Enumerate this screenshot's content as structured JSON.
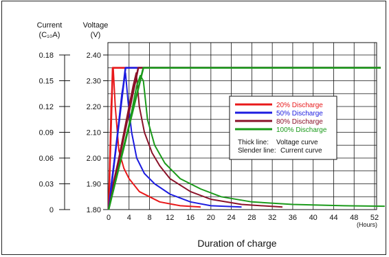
{
  "chart_data": {
    "type": "line",
    "xlabel": "Duration of charge",
    "x_unit": "(Hours)",
    "x_ticks": [
      0,
      4,
      8,
      12,
      16,
      20,
      24,
      28,
      32,
      36,
      40,
      44,
      48,
      52
    ],
    "xlim": [
      0,
      54
    ],
    "left_axis": {
      "title_line1": "Current",
      "title_line2": "(C₁₀A)",
      "ticks": [
        "0",
        "0.03",
        "0.06",
        "0.09",
        "0.12",
        "0.15",
        "0.18"
      ],
      "ylim": [
        0,
        0.18
      ]
    },
    "right_axis": {
      "title_line1": "Voltage",
      "title_line2": "(V)",
      "ticks": [
        "1.80",
        "1.90",
        "2.00",
        "2.10",
        "2.20",
        "2.30",
        "2.40"
      ],
      "ylim": [
        1.8,
        2.4
      ]
    },
    "grid": true,
    "legend_position": "center-right",
    "series": [
      {
        "name": "20% Discharge",
        "color": "#e8191a",
        "voltage": [
          [
            0,
            1.8
          ],
          [
            0.8,
            2.35
          ],
          [
            54,
            2.35
          ]
        ],
        "current": [
          [
            0,
            1.8
          ],
          [
            0.5,
            2.2
          ],
          [
            0.9,
            2.35
          ],
          [
            1.3,
            2.2
          ],
          [
            2,
            2.03
          ],
          [
            3,
            1.96
          ],
          [
            4,
            1.92
          ],
          [
            6,
            1.87
          ],
          [
            8,
            1.85
          ],
          [
            10,
            1.83
          ],
          [
            14,
            1.815
          ],
          [
            18,
            1.81
          ]
        ]
      },
      {
        "name": "50% Discharge",
        "color": "#1c1ce0",
        "voltage": [
          [
            0,
            1.8
          ],
          [
            3.3,
            2.35
          ],
          [
            54,
            2.35
          ]
        ],
        "current": [
          [
            0,
            1.82
          ],
          [
            1.5,
            2.05
          ],
          [
            2.6,
            2.25
          ],
          [
            3.3,
            2.33
          ],
          [
            3.8,
            2.22
          ],
          [
            4.5,
            2.1
          ],
          [
            5.5,
            2.0
          ],
          [
            7,
            1.94
          ],
          [
            9,
            1.9
          ],
          [
            12,
            1.86
          ],
          [
            16,
            1.83
          ],
          [
            20,
            1.815
          ],
          [
            26,
            1.81
          ]
        ]
      },
      {
        "name": "80% Discharge",
        "color": "#8a1128",
        "voltage": [
          [
            0,
            1.8
          ],
          [
            5.8,
            2.35
          ],
          [
            54,
            2.35
          ]
        ],
        "current": [
          [
            0,
            1.82
          ],
          [
            2,
            2.0
          ],
          [
            3.5,
            2.15
          ],
          [
            4.8,
            2.28
          ],
          [
            5.4,
            2.33
          ],
          [
            6,
            2.2
          ],
          [
            7,
            2.1
          ],
          [
            8.5,
            2.02
          ],
          [
            10,
            1.97
          ],
          [
            12,
            1.92
          ],
          [
            16,
            1.87
          ],
          [
            20,
            1.84
          ],
          [
            26,
            1.82
          ],
          [
            34,
            1.81
          ]
        ]
      },
      {
        "name": "100% Discharge",
        "color": "#1a9a1a",
        "voltage": [
          [
            0,
            1.8
          ],
          [
            6.8,
            2.35
          ],
          [
            54,
            2.35
          ]
        ],
        "current": [
          [
            0,
            1.82
          ],
          [
            2,
            1.97
          ],
          [
            4,
            2.13
          ],
          [
            5.5,
            2.28
          ],
          [
            6.2,
            2.32
          ],
          [
            6.8,
            2.3
          ],
          [
            7.6,
            2.15
          ],
          [
            9,
            2.05
          ],
          [
            11,
            1.98
          ],
          [
            14,
            1.92
          ],
          [
            18,
            1.88
          ],
          [
            22,
            1.85
          ],
          [
            28,
            1.83
          ],
          [
            36,
            1.82
          ],
          [
            46,
            1.815
          ],
          [
            54,
            1.813
          ]
        ]
      }
    ],
    "notes": [
      {
        "label": "Thick line:",
        "value": "Voltage curve"
      },
      {
        "label": "Slender line:",
        "value": "Current curve"
      }
    ]
  }
}
